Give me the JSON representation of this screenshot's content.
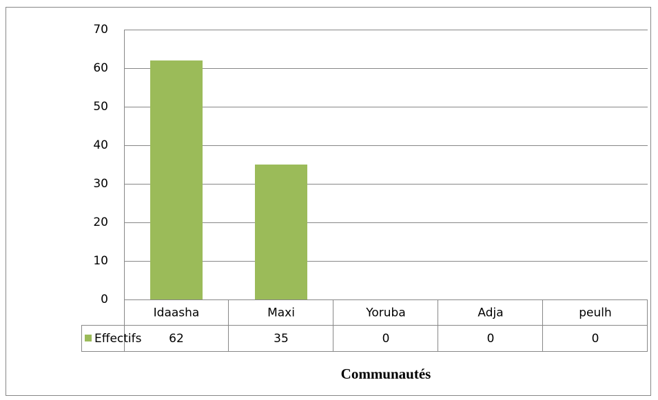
{
  "chart_data": {
    "type": "bar",
    "x_label": "Communautés",
    "categories": [
      "Idaasha",
      "Maxi",
      "Yoruba",
      "Adja",
      "peulh"
    ],
    "series": [
      {
        "name": "Effectifs",
        "color": "#9bbb59",
        "values": [
          62,
          35,
          0,
          0,
          0
        ]
      }
    ],
    "ylim": [
      0,
      70
    ],
    "yticks": [
      0,
      10,
      20,
      30,
      40,
      50,
      60,
      70
    ],
    "grid": true,
    "data_table": true
  }
}
